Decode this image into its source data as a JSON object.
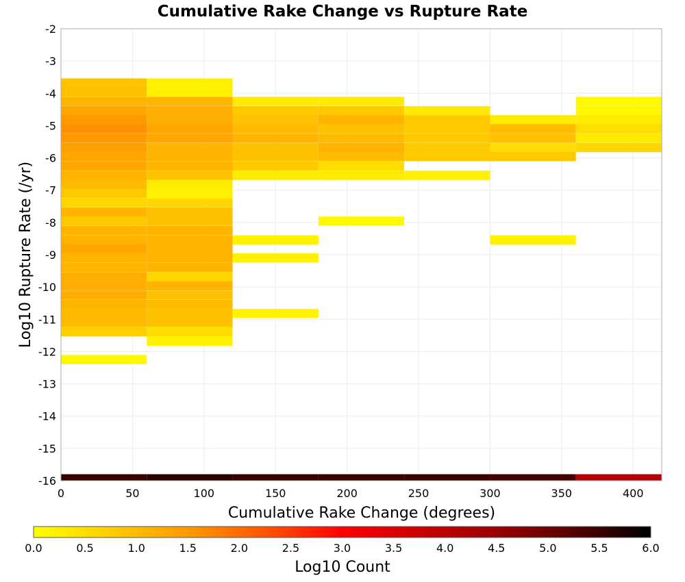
{
  "chart_data": {
    "type": "heatmap",
    "title": "Cumulative Rake Change vs Rupture Rate",
    "xlabel": "Cumulative Rake Change (degrees)",
    "ylabel": "Log10 Rupture Rate (/yr)",
    "xlim": [
      0,
      420
    ],
    "ylim": [
      -16,
      -2
    ],
    "x_ticks": [
      0,
      50,
      100,
      150,
      200,
      250,
      300,
      350,
      400
    ],
    "y_ticks": [
      -2,
      -3,
      -4,
      -5,
      -6,
      -7,
      -8,
      -9,
      -10,
      -11,
      -12,
      -13,
      -14,
      -15,
      -16
    ],
    "grid": true,
    "x_bin_width": 60,
    "y_bin_height": 0.285,
    "colorbar": {
      "label": "Log10 Count",
      "min": 0.0,
      "max": 6.0,
      "ticks": [
        "0.0",
        "0.5",
        "1.0",
        "1.5",
        "2.0",
        "2.5",
        "3.0",
        "3.5",
        "4.0",
        "4.5",
        "5.0",
        "5.5",
        "6.0"
      ],
      "colors": [
        "#ffff00",
        "#ffcc00",
        "#ff9900",
        "#ff5500",
        "#ff0000",
        "#cc0000",
        "#990000",
        "#550000",
        "#000000"
      ]
    },
    "columns": [
      {
        "x0": 0,
        "cells": [
          {
            "y": -3.68,
            "v": 0.9
          },
          {
            "y": -3.96,
            "v": 0.9
          },
          {
            "y": -4.25,
            "v": 1.1
          },
          {
            "y": -4.54,
            "v": 1.3
          },
          {
            "y": -4.82,
            "v": 1.5
          },
          {
            "y": -5.1,
            "v": 1.6
          },
          {
            "y": -5.39,
            "v": 1.5
          },
          {
            "y": -5.68,
            "v": 1.4
          },
          {
            "y": -5.96,
            "v": 1.3
          },
          {
            "y": -6.25,
            "v": 1.3
          },
          {
            "y": -6.54,
            "v": 1.1
          },
          {
            "y": -6.82,
            "v": 1.0
          },
          {
            "y": -7.1,
            "v": 0.8
          },
          {
            "y": -7.39,
            "v": 0.6
          },
          {
            "y": -7.68,
            "v": 1.1
          },
          {
            "y": -7.96,
            "v": 0.8
          },
          {
            "y": -8.25,
            "v": 1.1
          },
          {
            "y": -8.54,
            "v": 1.1
          },
          {
            "y": -8.82,
            "v": 1.3
          },
          {
            "y": -9.1,
            "v": 1.1
          },
          {
            "y": -9.39,
            "v": 1.1
          },
          {
            "y": -9.68,
            "v": 1.2
          },
          {
            "y": -9.96,
            "v": 1.2
          },
          {
            "y": -10.25,
            "v": 1.2
          },
          {
            "y": -10.54,
            "v": 1.1
          },
          {
            "y": -10.82,
            "v": 1.0
          },
          {
            "y": -11.1,
            "v": 1.0
          },
          {
            "y": -11.39,
            "v": 0.7
          },
          {
            "y": -12.25,
            "v": 0.1
          }
        ]
      },
      {
        "x0": 60,
        "cells": [
          {
            "y": -3.68,
            "v": 0.2
          },
          {
            "y": -3.96,
            "v": 0.2
          },
          {
            "y": -4.25,
            "v": 1.1
          },
          {
            "y": -4.54,
            "v": 1.2
          },
          {
            "y": -4.82,
            "v": 1.2
          },
          {
            "y": -5.1,
            "v": 1.3
          },
          {
            "y": -5.39,
            "v": 1.3
          },
          {
            "y": -5.68,
            "v": 1.1
          },
          {
            "y": -5.96,
            "v": 1.1
          },
          {
            "y": -6.25,
            "v": 1.1
          },
          {
            "y": -6.54,
            "v": 0.9
          },
          {
            "y": -6.82,
            "v": 0.3
          },
          {
            "y": -7.1,
            "v": 0.2
          },
          {
            "y": -7.39,
            "v": 0.6
          },
          {
            "y": -7.68,
            "v": 0.9
          },
          {
            "y": -7.96,
            "v": 0.9
          },
          {
            "y": -8.25,
            "v": 1.1
          },
          {
            "y": -8.54,
            "v": 1.1
          },
          {
            "y": -8.82,
            "v": 1.1
          },
          {
            "y": -9.1,
            "v": 1.1
          },
          {
            "y": -9.39,
            "v": 1.1
          },
          {
            "y": -9.68,
            "v": 0.6
          },
          {
            "y": -9.96,
            "v": 1.1
          },
          {
            "y": -10.25,
            "v": 0.9
          },
          {
            "y": -10.54,
            "v": 1.0
          },
          {
            "y": -10.82,
            "v": 0.9
          },
          {
            "y": -11.1,
            "v": 0.9
          },
          {
            "y": -11.39,
            "v": 0.5
          },
          {
            "y": -11.68,
            "v": 0.2
          }
        ]
      },
      {
        "x0": 120,
        "cells": [
          {
            "y": -4.25,
            "v": 0.3
          },
          {
            "y": -4.54,
            "v": 0.8
          },
          {
            "y": -4.82,
            "v": 0.9
          },
          {
            "y": -5.1,
            "v": 1.0
          },
          {
            "y": -5.39,
            "v": 1.1
          },
          {
            "y": -5.68,
            "v": 0.9
          },
          {
            "y": -5.96,
            "v": 0.9
          },
          {
            "y": -6.25,
            "v": 0.8
          },
          {
            "y": -6.54,
            "v": 0.3
          },
          {
            "y": -8.54,
            "v": 0.2
          },
          {
            "y": -9.1,
            "v": 0.2
          },
          {
            "y": -10.82,
            "v": 0.2
          }
        ]
      },
      {
        "x0": 180,
        "cells": [
          {
            "y": -4.25,
            "v": 0.3
          },
          {
            "y": -4.54,
            "v": 0.8
          },
          {
            "y": -4.82,
            "v": 1.1
          },
          {
            "y": -5.1,
            "v": 0.9
          },
          {
            "y": -5.39,
            "v": 1.0
          },
          {
            "y": -5.68,
            "v": 1.1
          },
          {
            "y": -5.96,
            "v": 1.0
          },
          {
            "y": -6.25,
            "v": 0.5
          },
          {
            "y": -6.54,
            "v": 0.3
          },
          {
            "y": -7.96,
            "v": 0.1
          }
        ]
      },
      {
        "x0": 240,
        "cells": [
          {
            "y": -4.54,
            "v": 0.3
          },
          {
            "y": -4.82,
            "v": 0.8
          },
          {
            "y": -5.1,
            "v": 0.8
          },
          {
            "y": -5.39,
            "v": 0.8
          },
          {
            "y": -5.68,
            "v": 0.8
          },
          {
            "y": -5.96,
            "v": 0.8
          },
          {
            "y": -6.54,
            "v": 0.2
          }
        ]
      },
      {
        "x0": 300,
        "cells": [
          {
            "y": -4.82,
            "v": 0.3
          },
          {
            "y": -5.1,
            "v": 1.0
          },
          {
            "y": -5.39,
            "v": 0.9
          },
          {
            "y": -5.68,
            "v": 0.5
          },
          {
            "y": -5.96,
            "v": 0.8
          },
          {
            "y": -8.54,
            "v": 0.2
          }
        ]
      },
      {
        "x0": 360,
        "cells": [
          {
            "y": -4.25,
            "v": 0.1
          },
          {
            "y": -4.54,
            "v": 0.1
          },
          {
            "y": -4.82,
            "v": 0.3
          },
          {
            "y": -5.1,
            "v": 0.5
          },
          {
            "y": -5.39,
            "v": 0.3
          },
          {
            "y": -5.68,
            "v": 0.6
          }
        ]
      }
    ],
    "bottom_row": {
      "y": -15.9,
      "cells": [
        {
          "x0": 0,
          "v": 5.5
        },
        {
          "x0": 60,
          "v": 5.6
        },
        {
          "x0": 120,
          "v": 5.5
        },
        {
          "x0": 180,
          "v": 5.5
        },
        {
          "x0": 240,
          "v": 5.5
        },
        {
          "x0": 300,
          "v": 5.4
        },
        {
          "x0": 360,
          "v": 4.1
        }
      ]
    }
  }
}
